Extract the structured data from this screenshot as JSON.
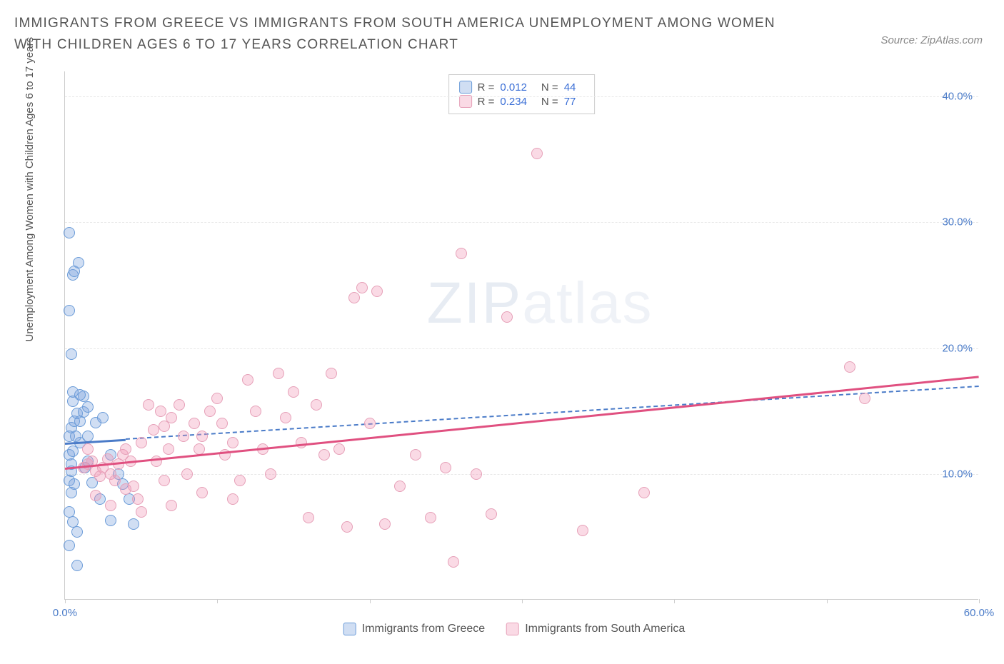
{
  "title": "IMMIGRANTS FROM GREECE VS IMMIGRANTS FROM SOUTH AMERICA UNEMPLOYMENT AMONG WOMEN WITH CHILDREN AGES 6 TO 17 YEARS CORRELATION CHART",
  "source": "Source: ZipAtlas.com",
  "y_label": "Unemployment Among Women with Children Ages 6 to 17 years",
  "watermark_a": "ZIP",
  "watermark_b": "atlas",
  "chart": {
    "type": "scatter",
    "xlim": [
      0,
      60
    ],
    "ylim": [
      0,
      42
    ],
    "x_ticks": [
      0,
      10,
      20,
      30,
      40,
      50,
      60
    ],
    "x_tick_labels": [
      "0.0%",
      "",
      "",
      "",
      "",
      "",
      "60.0%"
    ],
    "y_ticks": [
      10,
      20,
      30,
      40
    ],
    "y_tick_labels": [
      "10.0%",
      "20.0%",
      "30.0%",
      "40.0%"
    ],
    "grid_y": [
      10,
      20,
      30,
      40
    ],
    "background_color": "#ffffff",
    "grid_color": "#e8e8e8",
    "axis_color": "#cccccc",
    "tick_label_color": "#4a7bc8",
    "series": [
      {
        "name": "Immigrants from Greece",
        "fill": "rgba(120,160,220,0.35)",
        "stroke": "#6a9bd8",
        "r": 0.012,
        "n": 44,
        "trend": {
          "x1": 0,
          "y1": 12.5,
          "x2": 60,
          "y2": 17.0,
          "color": "#4a7bc8",
          "dash": true,
          "solid_until_x": 4
        },
        "points": [
          [
            0.3,
            9.5
          ],
          [
            0.4,
            10.2
          ],
          [
            0.4,
            10.8
          ],
          [
            0.3,
            11.5
          ],
          [
            0.5,
            11.8
          ],
          [
            0.6,
            9.2
          ],
          [
            0.4,
            8.5
          ],
          [
            0.3,
            7.0
          ],
          [
            0.5,
            6.2
          ],
          [
            0.8,
            5.4
          ],
          [
            0.3,
            4.3
          ],
          [
            0.8,
            2.7
          ],
          [
            0.3,
            13.0
          ],
          [
            0.4,
            13.7
          ],
          [
            0.6,
            14.2
          ],
          [
            0.8,
            14.8
          ],
          [
            1.0,
            14.2
          ],
          [
            1.2,
            14.9
          ],
          [
            1.5,
            15.3
          ],
          [
            1.2,
            16.2
          ],
          [
            1.0,
            16.3
          ],
          [
            0.5,
            16.5
          ],
          [
            1.5,
            13.0
          ],
          [
            2.0,
            14.1
          ],
          [
            2.5,
            14.5
          ],
          [
            3.0,
            11.5
          ],
          [
            3.5,
            10.0
          ],
          [
            3.8,
            9.2
          ],
          [
            4.2,
            8.0
          ],
          [
            4.5,
            6.0
          ],
          [
            3.0,
            6.3
          ],
          [
            0.4,
            19.5
          ],
          [
            0.3,
            23.0
          ],
          [
            0.5,
            25.8
          ],
          [
            0.6,
            26.1
          ],
          [
            0.9,
            26.8
          ],
          [
            0.3,
            29.2
          ],
          [
            1.3,
            10.5
          ],
          [
            1.8,
            9.3
          ],
          [
            2.3,
            8.0
          ],
          [
            1.0,
            12.5
          ],
          [
            0.7,
            13.0
          ],
          [
            1.5,
            11.0
          ],
          [
            0.5,
            15.8
          ]
        ]
      },
      {
        "name": "Immigrants from South America",
        "fill": "rgba(240,150,180,0.35)",
        "stroke": "#e6a0b8",
        "r": 0.234,
        "n": 77,
        "trend": {
          "x1": 0,
          "y1": 10.5,
          "x2": 60,
          "y2": 17.8,
          "color": "#e05080",
          "dash": false
        },
        "points": [
          [
            1.2,
            10.5
          ],
          [
            1.5,
            10.8
          ],
          [
            1.8,
            11.0
          ],
          [
            2.0,
            10.2
          ],
          [
            2.3,
            9.8
          ],
          [
            2.5,
            10.5
          ],
          [
            2.8,
            11.2
          ],
          [
            3.0,
            10.0
          ],
          [
            3.3,
            9.5
          ],
          [
            3.5,
            10.8
          ],
          [
            3.8,
            11.5
          ],
          [
            4.0,
            12.0
          ],
          [
            4.3,
            11.0
          ],
          [
            4.5,
            9.0
          ],
          [
            4.8,
            8.0
          ],
          [
            5.0,
            12.5
          ],
          [
            5.5,
            15.5
          ],
          [
            5.8,
            13.5
          ],
          [
            6.0,
            11.0
          ],
          [
            6.3,
            15.0
          ],
          [
            6.5,
            13.8
          ],
          [
            6.8,
            12.0
          ],
          [
            7.0,
            14.5
          ],
          [
            7.5,
            15.5
          ],
          [
            7.8,
            13.0
          ],
          [
            8.0,
            10.0
          ],
          [
            8.5,
            14.0
          ],
          [
            8.8,
            12.0
          ],
          [
            9.0,
            8.5
          ],
          [
            9.5,
            15.0
          ],
          [
            10.0,
            16.0
          ],
          [
            10.3,
            14.0
          ],
          [
            10.5,
            11.5
          ],
          [
            11.0,
            12.5
          ],
          [
            11.5,
            9.5
          ],
          [
            12.0,
            17.5
          ],
          [
            12.5,
            15.0
          ],
          [
            13.0,
            12.0
          ],
          [
            13.5,
            10.0
          ],
          [
            14.0,
            18.0
          ],
          [
            14.5,
            14.5
          ],
          [
            15.0,
            16.5
          ],
          [
            15.5,
            12.5
          ],
          [
            16.0,
            6.5
          ],
          [
            16.5,
            15.5
          ],
          [
            17.0,
            11.5
          ],
          [
            17.5,
            18.0
          ],
          [
            18.0,
            12.0
          ],
          [
            18.5,
            5.8
          ],
          [
            19.0,
            24.0
          ],
          [
            19.5,
            24.8
          ],
          [
            20.0,
            14.0
          ],
          [
            20.5,
            24.5
          ],
          [
            21.0,
            6.0
          ],
          [
            22.0,
            9.0
          ],
          [
            23.0,
            11.5
          ],
          [
            24.0,
            6.5
          ],
          [
            25.0,
            10.5
          ],
          [
            25.5,
            3.0
          ],
          [
            26.0,
            27.5
          ],
          [
            27.0,
            10.0
          ],
          [
            28.0,
            6.8
          ],
          [
            29.0,
            22.5
          ],
          [
            31.0,
            35.5
          ],
          [
            34.0,
            5.5
          ],
          [
            38.0,
            8.5
          ],
          [
            51.5,
            18.5
          ],
          [
            52.5,
            16.0
          ],
          [
            2.0,
            8.3
          ],
          [
            3.0,
            7.5
          ],
          [
            5.0,
            7.0
          ],
          [
            1.5,
            12.0
          ],
          [
            4.0,
            8.8
          ],
          [
            6.5,
            9.5
          ],
          [
            9.0,
            13.0
          ],
          [
            11.0,
            8.0
          ],
          [
            7.0,
            7.5
          ]
        ]
      }
    ]
  },
  "r_legend_label_r": "R =",
  "r_legend_label_n": "N ="
}
